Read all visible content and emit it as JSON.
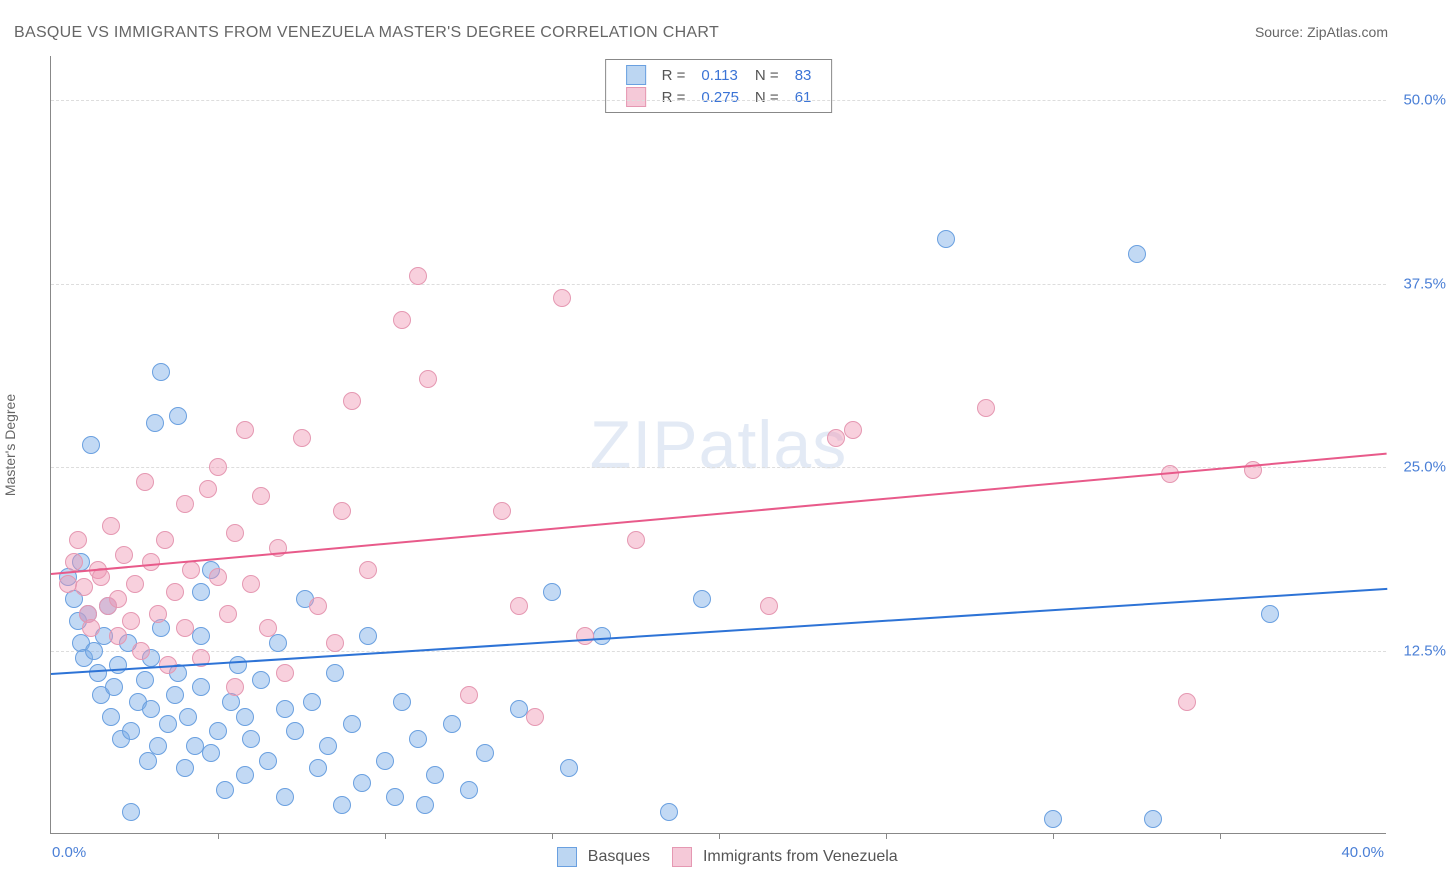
{
  "title": "BASQUE VS IMMIGRANTS FROM VENEZUELA MASTER'S DEGREE CORRELATION CHART",
  "source": "Source: ZipAtlas.com",
  "watermark": {
    "bold": "ZIP",
    "rest": "atlas"
  },
  "y_axis_label": "Master's Degree",
  "chart": {
    "type": "scatter",
    "background_color": "#ffffff",
    "x": {
      "min": 0.0,
      "max": 40.0,
      "origin_label": "0.0%",
      "max_label": "40.0%",
      "tick_step": 5.0
    },
    "y": {
      "min": 0.0,
      "max": 53.0,
      "ticks": [
        12.5,
        25.0,
        37.5,
        50.0
      ],
      "tick_labels": [
        "12.5%",
        "25.0%",
        "37.5%",
        "50.0%"
      ]
    },
    "grid_color": "#dddddd",
    "point_radius": 8,
    "series": [
      {
        "id": "basques",
        "label": "Basques",
        "fill_color": "rgba(120, 170, 230, 0.45)",
        "stroke_color": "#6aa0e0",
        "swatch_fill": "#bcd6f2",
        "swatch_border": "#6aa0e0",
        "r_value": "0.113",
        "n_value": "83",
        "trend": {
          "color": "#2d73d6",
          "y_at_xmin": 11.0,
          "y_at_xmax": 16.8
        },
        "points": [
          [
            0.5,
            17.5
          ],
          [
            0.7,
            16.0
          ],
          [
            0.8,
            14.5
          ],
          [
            0.9,
            13.0
          ],
          [
            0.9,
            18.5
          ],
          [
            1.0,
            12.0
          ],
          [
            1.1,
            15.0
          ],
          [
            1.2,
            26.5
          ],
          [
            1.3,
            12.5
          ],
          [
            1.4,
            11.0
          ],
          [
            1.5,
            9.5
          ],
          [
            1.6,
            13.5
          ],
          [
            1.7,
            15.5
          ],
          [
            1.8,
            8.0
          ],
          [
            1.9,
            10.0
          ],
          [
            2.0,
            11.5
          ],
          [
            2.1,
            6.5
          ],
          [
            2.3,
            13.0
          ],
          [
            2.4,
            7.0
          ],
          [
            2.4,
            1.5
          ],
          [
            2.6,
            9.0
          ],
          [
            2.8,
            10.5
          ],
          [
            2.9,
            5.0
          ],
          [
            3.0,
            8.5
          ],
          [
            3.0,
            12.0
          ],
          [
            3.1,
            28.0
          ],
          [
            3.2,
            6.0
          ],
          [
            3.3,
            14.0
          ],
          [
            3.3,
            31.5
          ],
          [
            3.5,
            7.5
          ],
          [
            3.7,
            9.5
          ],
          [
            3.8,
            11.0
          ],
          [
            3.8,
            28.5
          ],
          [
            4.0,
            4.5
          ],
          [
            4.1,
            8.0
          ],
          [
            4.3,
            6.0
          ],
          [
            4.5,
            10.0
          ],
          [
            4.5,
            13.5
          ],
          [
            4.5,
            16.5
          ],
          [
            4.8,
            5.5
          ],
          [
            4.8,
            18.0
          ],
          [
            5.0,
            7.0
          ],
          [
            5.2,
            3.0
          ],
          [
            5.4,
            9.0
          ],
          [
            5.6,
            11.5
          ],
          [
            5.8,
            4.0
          ],
          [
            5.8,
            8.0
          ],
          [
            6.0,
            6.5
          ],
          [
            6.3,
            10.5
          ],
          [
            6.5,
            5.0
          ],
          [
            6.8,
            13.0
          ],
          [
            7.0,
            2.5
          ],
          [
            7.0,
            8.5
          ],
          [
            7.3,
            7.0
          ],
          [
            7.6,
            16.0
          ],
          [
            7.8,
            9.0
          ],
          [
            8.0,
            4.5
          ],
          [
            8.3,
            6.0
          ],
          [
            8.5,
            11.0
          ],
          [
            8.7,
            2.0
          ],
          [
            9.0,
            7.5
          ],
          [
            9.3,
            3.5
          ],
          [
            9.5,
            13.5
          ],
          [
            10.0,
            5.0
          ],
          [
            10.3,
            2.5
          ],
          [
            10.5,
            9.0
          ],
          [
            11.0,
            6.5
          ],
          [
            11.2,
            2.0
          ],
          [
            11.5,
            4.0
          ],
          [
            12.0,
            7.5
          ],
          [
            12.5,
            3.0
          ],
          [
            13.0,
            5.5
          ],
          [
            14.0,
            8.5
          ],
          [
            15.0,
            16.5
          ],
          [
            15.5,
            4.5
          ],
          [
            16.5,
            13.5
          ],
          [
            18.5,
            1.5
          ],
          [
            19.5,
            16.0
          ],
          [
            26.8,
            40.5
          ],
          [
            30.0,
            1.0
          ],
          [
            32.5,
            39.5
          ],
          [
            33.0,
            1.0
          ],
          [
            36.5,
            15.0
          ]
        ]
      },
      {
        "id": "venezuela",
        "label": "Immigrants from Venezuela",
        "fill_color": "rgba(240, 150, 180, 0.45)",
        "stroke_color": "#e598b2",
        "swatch_fill": "#f5c9d8",
        "swatch_border": "#e598b2",
        "r_value": "0.275",
        "n_value": "61",
        "trend": {
          "color": "#e85a8a",
          "y_at_xmin": 17.8,
          "y_at_xmax": 26.0
        },
        "points": [
          [
            0.5,
            17.0
          ],
          [
            0.7,
            18.5
          ],
          [
            0.8,
            20.0
          ],
          [
            1.0,
            16.8
          ],
          [
            1.1,
            15.0
          ],
          [
            1.2,
            14.0
          ],
          [
            1.4,
            18.0
          ],
          [
            1.5,
            17.5
          ],
          [
            1.7,
            15.5
          ],
          [
            1.8,
            21.0
          ],
          [
            2.0,
            16.0
          ],
          [
            2.0,
            13.5
          ],
          [
            2.2,
            19.0
          ],
          [
            2.4,
            14.5
          ],
          [
            2.5,
            17.0
          ],
          [
            2.7,
            12.5
          ],
          [
            2.8,
            24.0
          ],
          [
            3.0,
            18.5
          ],
          [
            3.2,
            15.0
          ],
          [
            3.4,
            20.0
          ],
          [
            3.5,
            11.5
          ],
          [
            3.7,
            16.5
          ],
          [
            4.0,
            14.0
          ],
          [
            4.0,
            22.5
          ],
          [
            4.2,
            18.0
          ],
          [
            4.5,
            12.0
          ],
          [
            4.7,
            23.5
          ],
          [
            5.0,
            17.5
          ],
          [
            5.0,
            25.0
          ],
          [
            5.3,
            15.0
          ],
          [
            5.5,
            20.5
          ],
          [
            5.5,
            10.0
          ],
          [
            5.8,
            27.5
          ],
          [
            6.0,
            17.0
          ],
          [
            6.3,
            23.0
          ],
          [
            6.5,
            14.0
          ],
          [
            6.8,
            19.5
          ],
          [
            7.0,
            11.0
          ],
          [
            7.5,
            27.0
          ],
          [
            8.0,
            15.5
          ],
          [
            8.5,
            13.0
          ],
          [
            8.7,
            22.0
          ],
          [
            9.0,
            29.5
          ],
          [
            9.5,
            18.0
          ],
          [
            10.5,
            35.0
          ],
          [
            11.0,
            38.0
          ],
          [
            11.3,
            31.0
          ],
          [
            12.5,
            9.5
          ],
          [
            13.5,
            22.0
          ],
          [
            14.0,
            15.5
          ],
          [
            14.5,
            8.0
          ],
          [
            15.3,
            36.5
          ],
          [
            16.0,
            13.5
          ],
          [
            17.5,
            20.0
          ],
          [
            21.5,
            15.5
          ],
          [
            23.5,
            27.0
          ],
          [
            24.0,
            27.5
          ],
          [
            28.0,
            29.0
          ],
          [
            33.5,
            24.5
          ],
          [
            34.0,
            9.0
          ],
          [
            36.0,
            24.8
          ]
        ]
      }
    ]
  },
  "legend_top": {
    "r_label": "R =",
    "n_label": "N ="
  },
  "colors": {
    "title": "#666666",
    "axis_number": "#4a7fd6",
    "legend_value": "#3b74d6"
  }
}
